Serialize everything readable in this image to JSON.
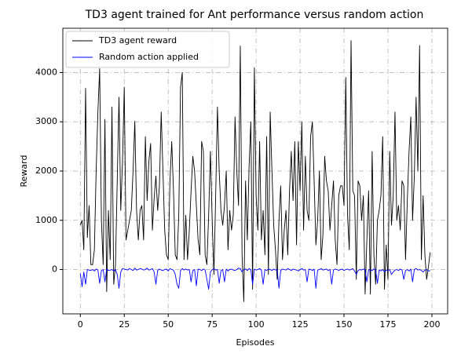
{
  "chart_data": {
    "type": "line",
    "title": "TD3 agent trained for Ant performance versus random action",
    "xlabel": "Episodes",
    "ylabel": "Reward",
    "x": [
      0,
      1,
      2,
      3,
      4,
      5,
      6,
      7,
      8,
      9,
      10,
      11,
      12,
      13,
      14,
      15,
      16,
      17,
      18,
      19,
      20,
      21,
      22,
      23,
      24,
      25,
      26,
      27,
      28,
      29,
      30,
      31,
      32,
      33,
      34,
      35,
      36,
      37,
      38,
      39,
      40,
      41,
      42,
      43,
      44,
      45,
      46,
      47,
      48,
      49,
      50,
      51,
      52,
      53,
      54,
      55,
      56,
      57,
      58,
      59,
      60,
      61,
      62,
      63,
      64,
      65,
      66,
      67,
      68,
      69,
      70,
      71,
      72,
      73,
      74,
      75,
      76,
      77,
      78,
      79,
      80,
      81,
      82,
      83,
      84,
      85,
      86,
      87,
      88,
      89,
      90,
      91,
      92,
      93,
      94,
      95,
      96,
      97,
      98,
      99,
      100,
      101,
      102,
      103,
      104,
      105,
      106,
      107,
      108,
      109,
      110,
      111,
      112,
      113,
      114,
      115,
      116,
      117,
      118,
      119,
      120,
      121,
      122,
      123,
      124,
      125,
      126,
      127,
      128,
      129,
      130,
      131,
      132,
      133,
      134,
      135,
      136,
      137,
      138,
      139,
      140,
      141,
      142,
      143,
      144,
      145,
      146,
      147,
      148,
      149,
      150,
      151,
      152,
      153,
      154,
      155,
      156,
      157,
      158,
      159,
      160,
      161,
      162,
      163,
      164,
      165,
      166,
      167,
      168,
      169,
      170,
      171,
      172,
      173,
      174,
      175,
      176,
      177,
      178,
      179,
      180,
      181,
      182,
      183,
      184,
      185,
      186,
      187,
      188,
      189,
      190,
      191,
      192,
      193,
      194,
      195,
      196,
      197,
      198,
      199
    ],
    "series": [
      {
        "name": "TD3 agent reward",
        "color": "#000000",
        "values": [
          900,
          1000,
          400,
          3680,
          650,
          1300,
          100,
          100,
          400,
          2000,
          3200,
          4080,
          1000,
          100,
          3050,
          -450,
          1200,
          200,
          3300,
          -300,
          100,
          1800,
          3500,
          1200,
          2200,
          3700,
          600,
          800,
          1000,
          1200,
          2000,
          3010,
          1200,
          600,
          1200,
          1300,
          600,
          2700,
          1400,
          2200,
          2560,
          800,
          1450,
          1900,
          1200,
          1700,
          3200,
          2000,
          800,
          300,
          200,
          1800,
          2600,
          1600,
          300,
          200,
          1100,
          3700,
          4000,
          200,
          1100,
          200,
          800,
          1600,
          2300,
          2000,
          1300,
          600,
          300,
          2600,
          2400,
          300,
          100,
          1100,
          2400,
          1000,
          -100,
          1500,
          3300,
          2000,
          1200,
          900,
          1300,
          2000,
          400,
          1200,
          800,
          1100,
          3100,
          2000,
          1300,
          4540,
          300,
          -650,
          1800,
          600,
          2100,
          3000,
          -400,
          4100,
          1500,
          800,
          2600,
          600,
          1200,
          300,
          2700,
          -100,
          3200,
          2000,
          900,
          400,
          -200,
          1000,
          1700,
          200,
          800,
          1200,
          300,
          1600,
          2400,
          1400,
          2600,
          500,
          2600,
          1600,
          3000,
          800,
          2300,
          1200,
          1000,
          2700,
          3000,
          1800,
          500,
          1000,
          2000,
          200,
          700,
          2300,
          1800,
          1600,
          800,
          1300,
          1800,
          600,
          100,
          1500,
          1700,
          1700,
          1300,
          3900,
          1100,
          400,
          4650,
          1600,
          1500,
          -200,
          1800,
          1700,
          1000,
          1500,
          -500,
          600,
          1600,
          -500,
          2400,
          300,
          -300,
          1000,
          1200,
          1500,
          2700,
          -400,
          500,
          -200,
          2400,
          900,
          1500,
          3200,
          1000,
          1300,
          800,
          1800,
          1700,
          200,
          1400,
          2400,
          3100,
          1000,
          1900,
          3500,
          2000,
          4550,
          200,
          1500,
          300,
          -200,
          50,
          350
        ]
      },
      {
        "name": "Random action applied",
        "color": "#0000ff",
        "values": [
          -80,
          -350,
          -50,
          -300,
          0,
          -10,
          -20,
          0,
          -30,
          10,
          -10,
          -280,
          -20,
          0,
          -250,
          10,
          -20,
          -10,
          0,
          -30,
          0,
          -100,
          -380,
          -50,
          20,
          10,
          0,
          -10,
          20,
          0,
          -20,
          30,
          -10,
          0,
          20,
          10,
          -10,
          0,
          30,
          -10,
          0,
          20,
          -50,
          -300,
          -20,
          10,
          -10,
          -20,
          0,
          10,
          -30,
          20,
          0,
          -10,
          -100,
          -300,
          -380,
          -20,
          20,
          -10,
          10,
          -10,
          0,
          -250,
          -20,
          0,
          -330,
          10,
          0,
          -20,
          10,
          -10,
          -200,
          -400,
          -50,
          0,
          20,
          -10,
          0,
          -280,
          -20,
          0,
          -250,
          10,
          -30,
          0,
          10,
          -10,
          -20,
          0,
          30,
          20,
          -50,
          0,
          10,
          -20,
          20,
          0,
          -300,
          10,
          -10,
          0,
          20,
          -10,
          -300,
          0,
          -20,
          10,
          0,
          -20,
          10,
          -10,
          0,
          -380,
          -20,
          10,
          0,
          -10,
          20,
          0,
          -20,
          10,
          0,
          -10,
          -30,
          0,
          20,
          -10,
          0,
          -250,
          10,
          0,
          -20,
          10,
          -380,
          -10,
          0,
          20,
          -10,
          0,
          10,
          -20,
          0,
          -300,
          -10,
          10,
          0,
          -20,
          0,
          10,
          -20,
          0,
          10,
          -10,
          0,
          20,
          -30,
          -100,
          -20,
          0,
          -10,
          10,
          0,
          -250,
          0,
          -10,
          -20,
          10,
          0,
          -280,
          -10,
          -30,
          0,
          -50,
          -10,
          -20,
          0,
          -100,
          -50,
          -10,
          0,
          -20,
          10,
          -10,
          -200,
          -20,
          0,
          -30,
          10,
          -250,
          0,
          20,
          -10,
          0,
          -20,
          -50,
          -10,
          0,
          -30,
          -20
        ]
      }
    ],
    "xlim": [
      -9.95,
      208.95
    ],
    "ylim": [
      -900,
      4900
    ],
    "xticks": [
      0,
      25,
      50,
      75,
      100,
      125,
      150,
      175,
      200
    ],
    "yticks": [
      0,
      1000,
      2000,
      3000,
      4000
    ],
    "grid": true,
    "legend": "upper left"
  }
}
